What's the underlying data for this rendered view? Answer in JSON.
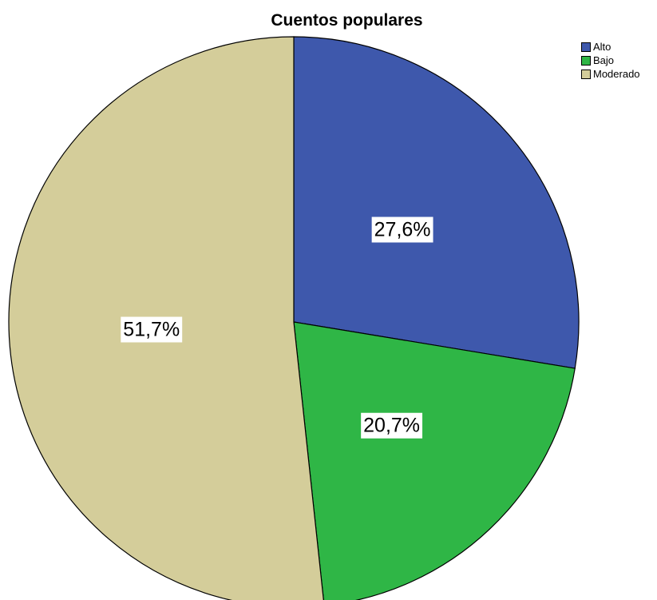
{
  "chart_data": {
    "type": "pie",
    "title": "Cuentos populares",
    "legend_position": "top-right",
    "slices": [
      {
        "name": "Alto",
        "value": 27.6,
        "label": "27,6%",
        "color": "#3e58ac"
      },
      {
        "name": "Bajo",
        "value": 20.7,
        "label": "20,7%",
        "color": "#2fb646"
      },
      {
        "name": "Moderado",
        "value": 51.7,
        "label": "51,7%",
        "color": "#d4cd9a"
      }
    ]
  }
}
